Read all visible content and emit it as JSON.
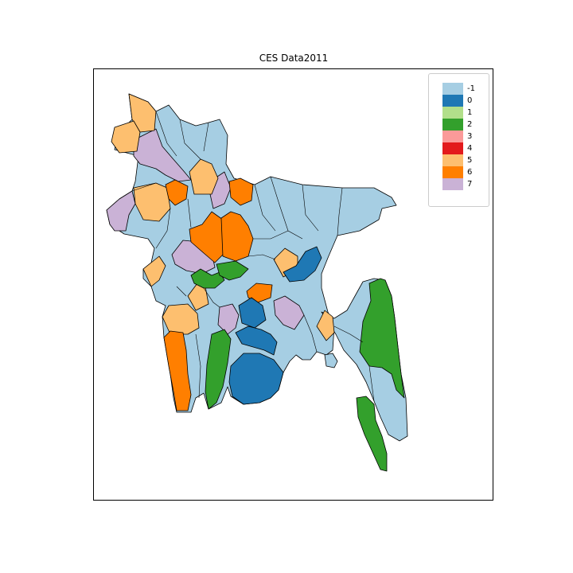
{
  "map": {
    "title": "CES Data2011",
    "legend": {
      "placement": "top-right",
      "items": [
        {
          "label": "-1",
          "color": "#a6cee3"
        },
        {
          "label": "0",
          "color": "#1f78b4"
        },
        {
          "label": "1",
          "color": "#b2df8a"
        },
        {
          "label": "2",
          "color": "#33a02c"
        },
        {
          "label": "3",
          "color": "#fb9a99"
        },
        {
          "label": "4",
          "color": "#e31a1c"
        },
        {
          "label": "5",
          "color": "#fdbf6f"
        },
        {
          "label": "6",
          "color": "#ff7f00"
        },
        {
          "label": "7",
          "color": "#cab2d6"
        }
      ]
    }
  }
}
